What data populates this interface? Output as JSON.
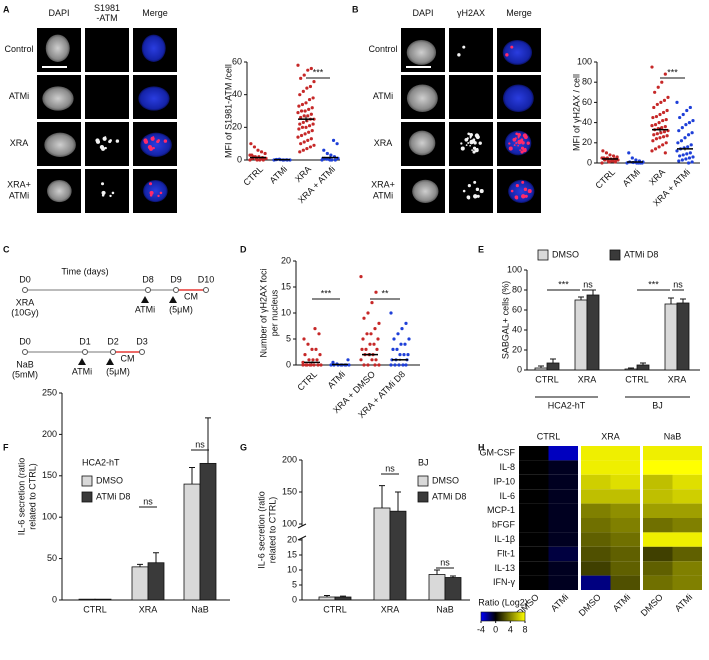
{
  "panel_labels": [
    "A",
    "B",
    "C",
    "D",
    "E",
    "F",
    "G",
    "H"
  ],
  "micrographs": [
    {
      "columns": [
        [
          "DAPI"
        ],
        [
          "S1981",
          "-ATM"
        ],
        [
          "Merge"
        ]
      ],
      "rows": [
        [
          "Control"
        ],
        [
          "ATMi"
        ],
        [
          "XRA"
        ],
        [
          "XRA+",
          "ATMi"
        ]
      ]
    },
    {
      "columns": [
        [
          "DAPI"
        ],
        [
          "γH2AX"
        ],
        [
          "Merge"
        ]
      ],
      "rows": [
        [
          "Control"
        ],
        [
          "ATMi"
        ],
        [
          "XRA"
        ],
        [
          "XRA+",
          "ATMi"
        ]
      ]
    }
  ],
  "timeline": {
    "axis_label": "Time (days)",
    "tracks": [
      {
        "days": [
          "D0",
          "D8",
          "D9",
          "D10"
        ],
        "treatment": [
          "XRA",
          "(10Gy)"
        ],
        "drug": [
          "ATMi",
          "(5μM)"
        ],
        "cm": "CM"
      },
      {
        "days": [
          "D0",
          "D1",
          "D2",
          "D3"
        ],
        "treatment": [
          "NaB",
          "(5mM)"
        ],
        "drug": [
          "ATMi",
          "(5μM)"
        ],
        "cm": "CM"
      }
    ]
  },
  "chart_data": [
    {
      "type": "strip",
      "ylabel": "MFI of S1981-ATM /cell",
      "categories": [
        "CTRL",
        "ATMi",
        "XRA",
        "XRA + ATMi"
      ],
      "ylim": [
        0,
        60
      ],
      "yticks": [
        0,
        20,
        40,
        60
      ],
      "groups": [
        {
          "color": "#c62828",
          "values": [
            0,
            0,
            0,
            0.5,
            1,
            1,
            1.5,
            2,
            2,
            3,
            4,
            5,
            6,
            8,
            10,
            1,
            0.5,
            0,
            2,
            3
          ],
          "mean": 1.5,
          "sem": 0.5
        },
        {
          "color": "#1e3fd8",
          "values": [
            0,
            0,
            0,
            0.2,
            0.3,
            0,
            0.1,
            0,
            0.5,
            0.2
          ],
          "mean": 0.2,
          "sem": 0.1
        },
        {
          "color": "#c62828",
          "values": [
            58,
            56,
            55,
            52,
            50,
            48,
            45,
            44,
            42,
            40,
            38,
            37,
            35,
            34,
            33,
            32,
            31,
            30,
            30,
            29,
            28,
            27,
            27,
            26,
            25,
            25,
            24,
            23,
            22,
            22,
            21,
            20,
            20,
            19,
            18,
            17,
            16,
            15,
            14,
            13,
            12,
            11,
            10,
            9,
            8,
            7,
            6,
            5
          ],
          "mean": 25,
          "sem": 1.5
        },
        {
          "color": "#1e3fd8",
          "values": [
            0,
            0,
            0,
            0.5,
            1,
            1,
            2,
            3,
            4,
            6,
            10,
            12,
            0,
            0.5,
            1
          ],
          "mean": 1.5,
          "sem": 0.8
        }
      ],
      "annotations": [
        "***"
      ]
    },
    {
      "type": "strip",
      "ylabel": "MFI of γH2AX / cell",
      "categories": [
        "CTRL",
        "ATMi",
        "XRA",
        "XRA + ATMi"
      ],
      "ylim": [
        0,
        100
      ],
      "yticks": [
        0,
        20,
        40,
        60,
        80,
        100
      ],
      "groups": [
        {
          "color": "#c62828",
          "values": [
            0,
            1,
            2,
            2,
            3,
            3,
            4,
            4,
            5,
            5,
            6,
            7,
            8,
            10,
            12,
            3,
            2,
            1,
            4,
            5
          ],
          "mean": 4,
          "sem": 0.5
        },
        {
          "color": "#1e3fd8",
          "values": [
            0,
            0,
            0,
            0.5,
            1,
            1,
            2,
            3,
            5,
            10,
            0,
            0
          ],
          "mean": 1,
          "sem": 0.5
        },
        {
          "color": "#c62828",
          "values": [
            95,
            88,
            80,
            75,
            70,
            65,
            62,
            60,
            58,
            55,
            52,
            50,
            48,
            46,
            45,
            43,
            42,
            40,
            38,
            37,
            36,
            35,
            34,
            33,
            32,
            31,
            30,
            29,
            28,
            27,
            26,
            25,
            24,
            22,
            20,
            18,
            16,
            14,
            12,
            10
          ],
          "mean": 33,
          "sem": 2
        },
        {
          "color": "#1e3fd8",
          "values": [
            60,
            55,
            52,
            48,
            45,
            42,
            40,
            38,
            35,
            32,
            30,
            28,
            25,
            22,
            20,
            18,
            16,
            15,
            14,
            12,
            10,
            9,
            8,
            7,
            6,
            5,
            4,
            3,
            2,
            1,
            0
          ],
          "mean": 14,
          "sem": 1.5
        }
      ],
      "annotations": [
        "***"
      ]
    },
    {
      "type": "strip",
      "ylabel": [
        "Number of γH2AX foci",
        "per nucleus"
      ],
      "categories": [
        "CTRL",
        "ATMi",
        "XRA + DMSO",
        "XRA + ATMi D8"
      ],
      "ylim": [
        0,
        20
      ],
      "yticks": [
        0,
        5,
        10,
        15,
        20
      ],
      "groups": [
        {
          "color": "#c62828",
          "values": [
            0,
            0,
            0,
            0,
            0,
            0,
            1,
            1,
            1,
            2,
            2,
            3,
            3,
            4,
            5,
            6,
            7,
            0,
            0,
            0.5
          ],
          "mean": 0.5,
          "sem": 0.2
        },
        {
          "color": "#1e3fd8",
          "values": [
            0,
            0,
            0,
            0,
            0,
            0,
            0,
            0,
            0.2,
            0.5,
            1
          ],
          "mean": 0.1,
          "sem": 0.05
        },
        {
          "color": "#c62828",
          "values": [
            17,
            14,
            12,
            10,
            9,
            8,
            7,
            6,
            6,
            5,
            5,
            4,
            4,
            3,
            3,
            3,
            2,
            2,
            2,
            1,
            1,
            1,
            0,
            0,
            0,
            0
          ],
          "mean": 2,
          "sem": 0.3
        },
        {
          "color": "#1e3fd8",
          "values": [
            10,
            8,
            7,
            6,
            5,
            5,
            4,
            4,
            3,
            3,
            2,
            2,
            2,
            1,
            1,
            1,
            0,
            0,
            0,
            0,
            0
          ],
          "mean": 1,
          "sem": 0.2
        }
      ],
      "annotations": [
        "***",
        "**"
      ]
    },
    {
      "type": "bar",
      "ylabel": "SABGAL+ cells (%)",
      "categories": [
        "CTRL",
        "XRA",
        "CTRL",
        "XRA"
      ],
      "groups": [
        "HCA2-hT",
        "BJ"
      ],
      "ylim": [
        0,
        100
      ],
      "yticks": [
        0,
        20,
        40,
        60,
        80,
        100
      ],
      "series": [
        {
          "name": "DMSO",
          "color": "#d9d9d9",
          "values": [
            2,
            70,
            1,
            66
          ],
          "errors": [
            2,
            3,
            1,
            6
          ]
        },
        {
          "name": "ATMi D8",
          "color": "#3a3a3a",
          "values": [
            7,
            75,
            5,
            67
          ],
          "errors": [
            4,
            5,
            2,
            4
          ]
        }
      ],
      "annotations": [
        "***",
        "ns",
        "***",
        "ns"
      ]
    },
    {
      "type": "bar",
      "title": "HCA2-hT",
      "ylabel": [
        "IL-6 secretion (ratio",
        "related to CTRL)"
      ],
      "categories": [
        "CTRL",
        "XRA",
        "NaB"
      ],
      "ylim": [
        0,
        250
      ],
      "yticks": [
        0,
        50,
        100,
        150,
        200,
        250
      ],
      "series": [
        {
          "name": "DMSO",
          "color": "#d9d9d9",
          "values": [
            1,
            40,
            140
          ],
          "errors": [
            null,
            3,
            20
          ]
        },
        {
          "name": "ATMi D8",
          "color": "#3a3a3a",
          "values": [
            1,
            45,
            165
          ],
          "errors": [
            null,
            12,
            55
          ]
        }
      ],
      "annotations": [
        "ns",
        "ns"
      ]
    },
    {
      "type": "bar",
      "title": "BJ",
      "ylabel": [
        "IL-6 secretion (ratio",
        "related to CTRL)"
      ],
      "categories": [
        "CTRL",
        "XRA",
        "NaB"
      ],
      "ylim": [
        0,
        200
      ],
      "axis_break": [
        20,
        100
      ],
      "yticks": [
        0,
        5,
        10,
        15,
        20,
        100,
        150,
        200
      ],
      "series": [
        {
          "name": "DMSO",
          "color": "#d9d9d9",
          "values": [
            1,
            125,
            8.5
          ],
          "errors": [
            0.5,
            35,
            1.5
          ]
        },
        {
          "name": "ATMi D8",
          "color": "#3a3a3a",
          "values": [
            1,
            120,
            7.5
          ],
          "errors": [
            0.3,
            30,
            0.5
          ]
        }
      ],
      "annotations": [
        "ns",
        "ns"
      ]
    },
    {
      "type": "heatmap",
      "rows": [
        "GM-CSF",
        "IL-8",
        "IP-10",
        "IL-6",
        "MCP-1",
        "bFGF",
        "IL-1β",
        "Flt-1",
        "IL-13",
        "IFN-γ"
      ],
      "column_groups": [
        "CTRL",
        "XRA",
        "NaB"
      ],
      "columns": [
        "DMSO",
        "ATMi",
        "DMSO",
        "ATMi",
        "DMSO",
        "ATMi"
      ],
      "values": [
        [
          0,
          -3,
          7.5,
          7.5,
          7.5,
          7.5
        ],
        [
          0,
          -0.5,
          7.5,
          7.5,
          8,
          8
        ],
        [
          0,
          -0.5,
          6.5,
          7,
          6,
          7
        ],
        [
          0,
          -0.5,
          6,
          6,
          6,
          6.5
        ],
        [
          0,
          -0.5,
          4,
          4.5,
          5,
          5
        ],
        [
          0,
          -0.5,
          3.5,
          4,
          3.5,
          4
        ],
        [
          0,
          -0.5,
          3,
          3.5,
          7.5,
          7.5
        ],
        [
          0,
          -1,
          2.5,
          3,
          2,
          3
        ],
        [
          0,
          -0.5,
          2,
          3,
          3,
          4
        ],
        [
          0,
          -0.5,
          -2,
          2.5,
          3.5,
          4
        ]
      ],
      "colorbar_label": "Ratio (Log2)",
      "clim": [
        -4,
        8
      ],
      "cticks": [
        -4,
        0,
        4,
        8
      ],
      "color_stops": [
        -4,
        0,
        8
      ],
      "colors": [
        "#0000ff",
        "#000000",
        "#ffff00"
      ]
    }
  ]
}
